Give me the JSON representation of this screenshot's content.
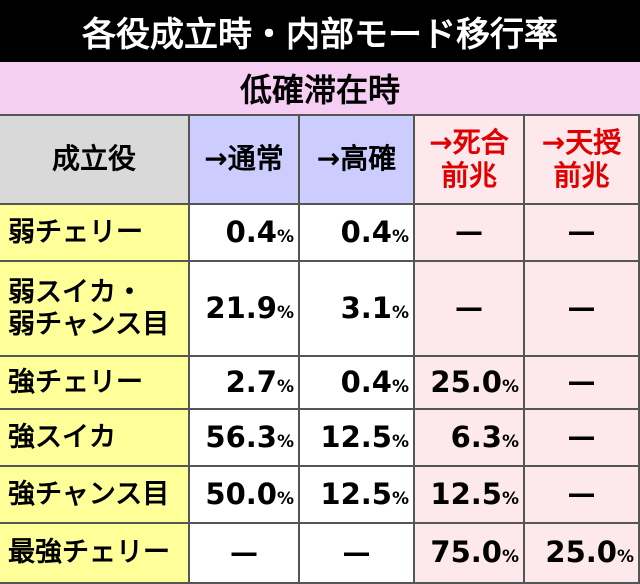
{
  "header": {
    "title": "各役成立時・内部モード移行率"
  },
  "table": {
    "caption": "低確滞在時",
    "columns": [
      [
        "成立役"
      ],
      [
        "→通常"
      ],
      [
        "→高確"
      ],
      [
        "→死合",
        "前兆"
      ],
      [
        "→天授",
        "前兆"
      ]
    ],
    "rows": [
      {
        "label": [
          "弱チェリー"
        ],
        "cells": [
          {
            "value": "0.4",
            "unit": "%"
          },
          {
            "value": "0.4",
            "unit": "%"
          },
          "—",
          "—"
        ]
      },
      {
        "label": [
          "弱スイカ・",
          "弱チャンス目"
        ],
        "cells": [
          {
            "value": "21.9",
            "unit": "%"
          },
          {
            "value": "3.1",
            "unit": "%"
          },
          "—",
          "—"
        ]
      },
      {
        "label": [
          "強チェリー"
        ],
        "cells": [
          {
            "value": "2.7",
            "unit": "%"
          },
          {
            "value": "0.4",
            "unit": "%"
          },
          {
            "value": "25.0",
            "unit": "%"
          },
          "—"
        ]
      },
      {
        "label": [
          "強スイカ"
        ],
        "cells": [
          {
            "value": "56.3",
            "unit": "%"
          },
          {
            "value": "12.5",
            "unit": "%"
          },
          {
            "value": "6.3",
            "unit": "%"
          },
          "—"
        ]
      },
      {
        "label": [
          "強チャンス目"
        ],
        "cells": [
          {
            "value": "50.0",
            "unit": "%"
          },
          {
            "value": "12.5",
            "unit": "%"
          },
          {
            "value": "12.5",
            "unit": "%"
          },
          "—"
        ]
      },
      {
        "label": [
          "最強チェリー"
        ],
        "cells": [
          "—",
          "—",
          {
            "value": "75.0",
            "unit": "%"
          },
          {
            "value": "25.0",
            "unit": "%"
          }
        ]
      }
    ]
  }
}
